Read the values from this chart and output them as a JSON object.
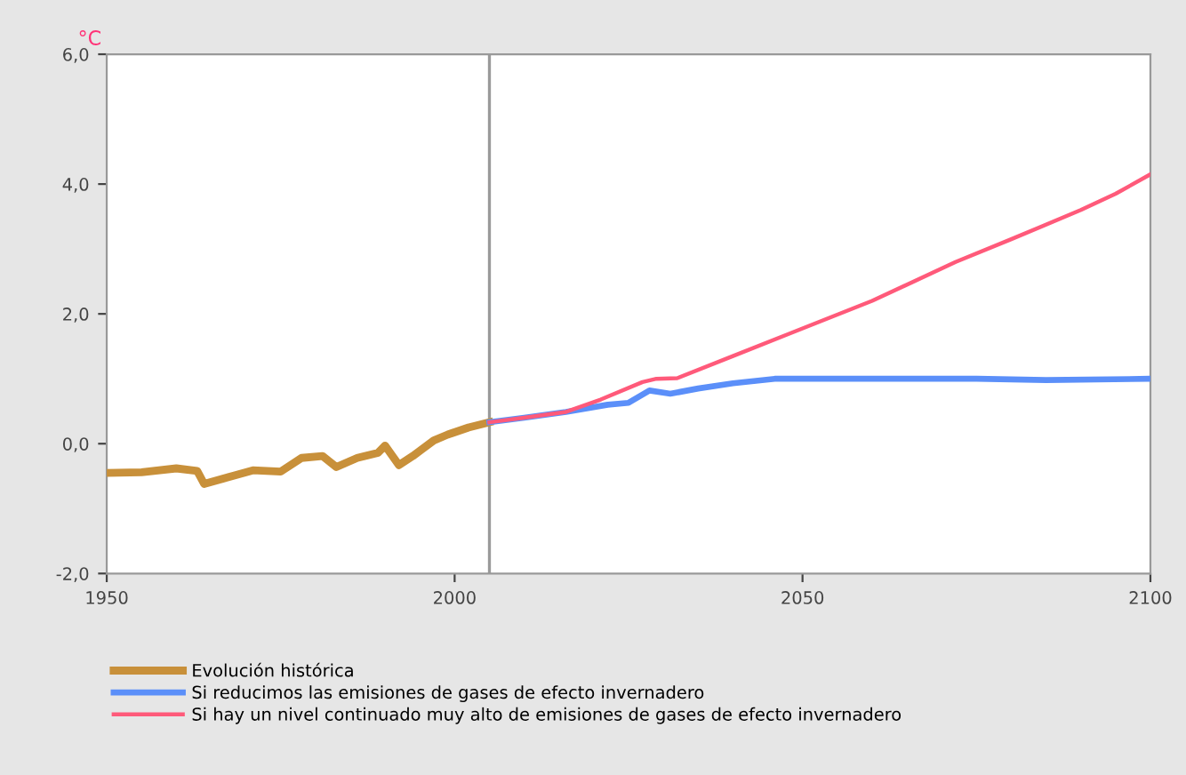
{
  "chart_data": {
    "type": "line",
    "ylabel": "°C",
    "xlim": [
      1950,
      2100
    ],
    "ylim": [
      -2.0,
      6.0
    ],
    "xticks": [
      1950,
      2000,
      2050,
      2100
    ],
    "yticks": [
      {
        "value": -2.0,
        "label": "-2,0"
      },
      {
        "value": 0.0,
        "label": "0,0"
      },
      {
        "value": 2.0,
        "label": "2,0"
      },
      {
        "value": 4.0,
        "label": "4,0"
      },
      {
        "value": 6.0,
        "label": "6,0"
      }
    ],
    "grid": false,
    "legend": "bottom",
    "line_style": "solid",
    "marker": "none",
    "ref_lines": [
      {
        "axis": "x",
        "value": 2005,
        "color": "#9a9a9a"
      }
    ],
    "series": [
      {
        "name": "Evolución histórica",
        "color": "#c8903a",
        "x": [
          1950,
          1955,
          1960,
          1963,
          1964,
          1968,
          1971,
          1975,
          1978,
          1981,
          1983,
          1986,
          1989,
          1990,
          1992,
          1994,
          1997,
          1999,
          2002,
          2005
        ],
        "values": [
          -0.45,
          -0.44,
          -0.38,
          -0.42,
          -0.62,
          -0.5,
          -0.41,
          -0.43,
          -0.22,
          -0.19,
          -0.36,
          -0.22,
          -0.14,
          -0.03,
          -0.33,
          -0.19,
          0.05,
          0.14,
          0.25,
          0.33
        ]
      },
      {
        "name": "Si reducimos las emisiones de gases de efecto invernadero",
        "color": "#5b8ff9",
        "x": [
          2005,
          2010,
          2016,
          2022,
          2025,
          2028,
          2031,
          2035,
          2040,
          2046,
          2060,
          2075,
          2085,
          2100
        ],
        "values": [
          0.33,
          0.4,
          0.49,
          0.6,
          0.63,
          0.82,
          0.77,
          0.85,
          0.93,
          1.0,
          1.0,
          1.0,
          0.98,
          1.0
        ]
      },
      {
        "name": "Si hay un nivel continuado muy alto de emisiones de gases de efecto invernadero",
        "color": "#ff5a7a",
        "x": [
          2005,
          2010,
          2016,
          2021,
          2027,
          2029,
          2032,
          2040,
          2048,
          2060,
          2072,
          2080,
          2090,
          2095,
          2100
        ],
        "values": [
          0.33,
          0.4,
          0.49,
          0.68,
          0.95,
          1.0,
          1.01,
          1.35,
          1.69,
          2.2,
          2.8,
          3.15,
          3.6,
          3.85,
          4.15
        ]
      }
    ]
  }
}
